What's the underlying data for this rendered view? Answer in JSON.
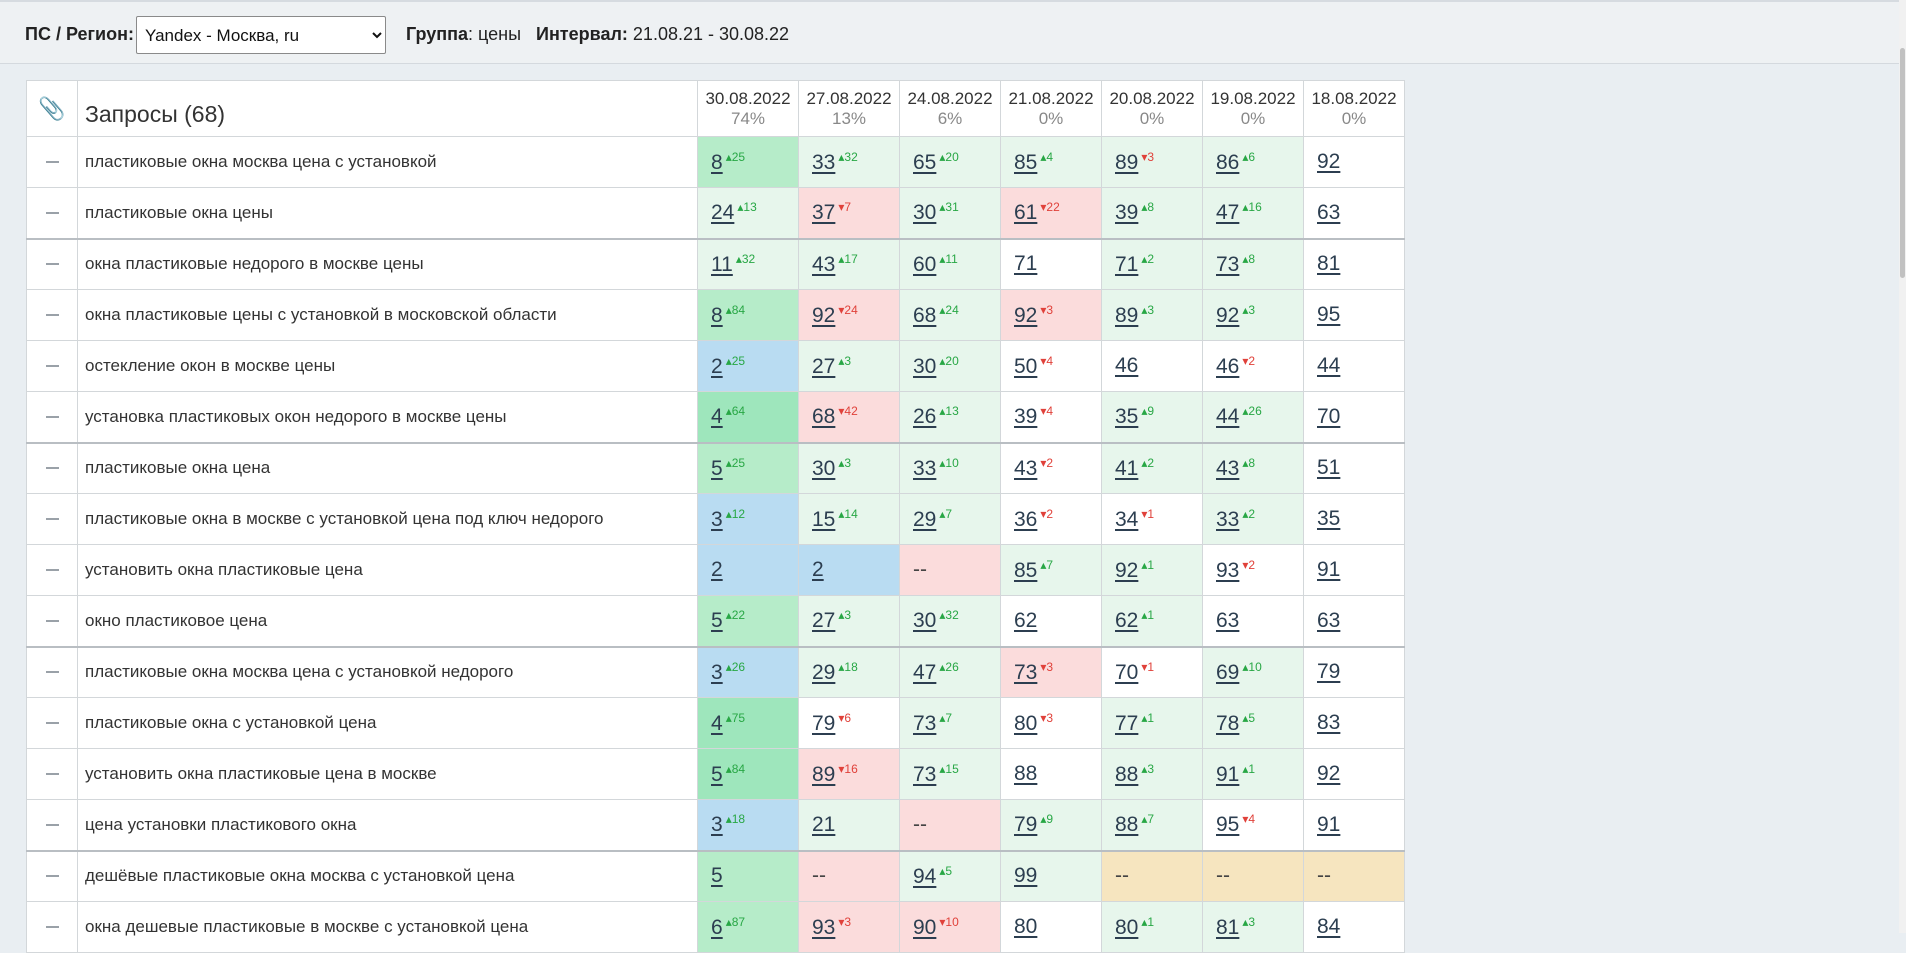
{
  "toolbar": {
    "ps_label": "ПС / Регион:",
    "region_value": "Yandex - Москва, ru",
    "group_label": "Группа",
    "group_value": ": цены",
    "interval_label": "Интервал:",
    "interval_value": "21.08.21 - 30.08.22"
  },
  "table": {
    "header_icon": "paperclip-icon",
    "queries_title": "Запросы (68)",
    "dates": [
      {
        "date": "30.08.2022",
        "pct": "74%"
      },
      {
        "date": "27.08.2022",
        "pct": "13%"
      },
      {
        "date": "24.08.2022",
        "pct": "6%"
      },
      {
        "date": "21.08.2022",
        "pct": "0%"
      },
      {
        "date": "20.08.2022",
        "pct": "0%"
      },
      {
        "date": "19.08.2022",
        "pct": "0%"
      },
      {
        "date": "18.08.2022",
        "pct": "0%"
      }
    ],
    "rows": [
      {
        "q": "пластиковые окна москва цена с установкой",
        "sep": false,
        "cells": [
          {
            "v": "8",
            "d": "25",
            "dir": "up",
            "bg": "mg"
          },
          {
            "v": "33",
            "d": "32",
            "dir": "up",
            "bg": "lg"
          },
          {
            "v": "65",
            "d": "20",
            "dir": "up",
            "bg": "lg"
          },
          {
            "v": "85",
            "d": "4",
            "dir": "up",
            "bg": "lg"
          },
          {
            "v": "89",
            "d": "3",
            "dir": "down",
            "bg": "lg"
          },
          {
            "v": "86",
            "d": "6",
            "dir": "up",
            "bg": "lg"
          },
          {
            "v": "92",
            "d": "",
            "dir": "",
            "bg": "wh"
          }
        ]
      },
      {
        "q": "пластиковые окна цены",
        "sep": false,
        "cells": [
          {
            "v": "24",
            "d": "13",
            "dir": "up",
            "bg": "lg"
          },
          {
            "v": "37",
            "d": "7",
            "dir": "down",
            "bg": "rd"
          },
          {
            "v": "30",
            "d": "31",
            "dir": "up",
            "bg": "lg"
          },
          {
            "v": "61",
            "d": "22",
            "dir": "down",
            "bg": "rd"
          },
          {
            "v": "39",
            "d": "8",
            "dir": "up",
            "bg": "lg"
          },
          {
            "v": "47",
            "d": "16",
            "dir": "up",
            "bg": "lg"
          },
          {
            "v": "63",
            "d": "",
            "dir": "",
            "bg": "wh"
          }
        ]
      },
      {
        "q": "окна пластиковые недорого в москве цены",
        "sep": true,
        "cells": [
          {
            "v": "11",
            "d": "32",
            "dir": "up",
            "bg": "lg"
          },
          {
            "v": "43",
            "d": "17",
            "dir": "up",
            "bg": "lg"
          },
          {
            "v": "60",
            "d": "11",
            "dir": "up",
            "bg": "lg"
          },
          {
            "v": "71",
            "d": "",
            "dir": "",
            "bg": "wh"
          },
          {
            "v": "71",
            "d": "2",
            "dir": "up",
            "bg": "lg"
          },
          {
            "v": "73",
            "d": "8",
            "dir": "up",
            "bg": "lg"
          },
          {
            "v": "81",
            "d": "",
            "dir": "",
            "bg": "wh"
          }
        ]
      },
      {
        "q": "окна пластиковые цены с установкой в московской области",
        "sep": false,
        "cells": [
          {
            "v": "8",
            "d": "84",
            "dir": "up",
            "bg": "mg"
          },
          {
            "v": "92",
            "d": "24",
            "dir": "down",
            "bg": "rd"
          },
          {
            "v": "68",
            "d": "24",
            "dir": "up",
            "bg": "lg"
          },
          {
            "v": "92",
            "d": "3",
            "dir": "down",
            "bg": "rd"
          },
          {
            "v": "89",
            "d": "3",
            "dir": "up",
            "bg": "lg"
          },
          {
            "v": "92",
            "d": "3",
            "dir": "up",
            "bg": "lg"
          },
          {
            "v": "95",
            "d": "",
            "dir": "",
            "bg": "wh"
          }
        ]
      },
      {
        "q": "остекление окон в москве цены",
        "sep": false,
        "cells": [
          {
            "v": "2",
            "d": "25",
            "dir": "up",
            "bg": "bl"
          },
          {
            "v": "27",
            "d": "3",
            "dir": "up",
            "bg": "lg"
          },
          {
            "v": "30",
            "d": "20",
            "dir": "up",
            "bg": "lg"
          },
          {
            "v": "50",
            "d": "4",
            "dir": "down",
            "bg": "wh"
          },
          {
            "v": "46",
            "d": "",
            "dir": "",
            "bg": "wh",
            "plain": true
          },
          {
            "v": "46",
            "d": "2",
            "dir": "down",
            "bg": "wh"
          },
          {
            "v": "44",
            "d": "",
            "dir": "",
            "bg": "wh"
          }
        ]
      },
      {
        "q": "установка пластиковых окон недорого в москве цены",
        "sep": false,
        "cells": [
          {
            "v": "4",
            "d": "64",
            "dir": "up",
            "bg": "dg"
          },
          {
            "v": "68",
            "d": "42",
            "dir": "down",
            "bg": "rd"
          },
          {
            "v": "26",
            "d": "13",
            "dir": "up",
            "bg": "lg"
          },
          {
            "v": "39",
            "d": "4",
            "dir": "down",
            "bg": "wh"
          },
          {
            "v": "35",
            "d": "9",
            "dir": "up",
            "bg": "lg"
          },
          {
            "v": "44",
            "d": "26",
            "dir": "up",
            "bg": "lg"
          },
          {
            "v": "70",
            "d": "",
            "dir": "",
            "bg": "wh"
          }
        ]
      },
      {
        "q": "пластиковые окна цена",
        "sep": true,
        "cells": [
          {
            "v": "5",
            "d": "25",
            "dir": "up",
            "bg": "mg"
          },
          {
            "v": "30",
            "d": "3",
            "dir": "up",
            "bg": "lg"
          },
          {
            "v": "33",
            "d": "10",
            "dir": "up",
            "bg": "lg"
          },
          {
            "v": "43",
            "d": "2",
            "dir": "down",
            "bg": "wh"
          },
          {
            "v": "41",
            "d": "2",
            "dir": "up",
            "bg": "lg"
          },
          {
            "v": "43",
            "d": "8",
            "dir": "up",
            "bg": "lg"
          },
          {
            "v": "51",
            "d": "",
            "dir": "",
            "bg": "wh"
          }
        ]
      },
      {
        "q": "пластиковые окна в москве с установкой цена под ключ недорого",
        "sep": false,
        "cells": [
          {
            "v": "3",
            "d": "12",
            "dir": "up",
            "bg": "bl"
          },
          {
            "v": "15",
            "d": "14",
            "dir": "up",
            "bg": "lg"
          },
          {
            "v": "29",
            "d": "7",
            "dir": "up",
            "bg": "lg"
          },
          {
            "v": "36",
            "d": "2",
            "dir": "down",
            "bg": "wh"
          },
          {
            "v": "34",
            "d": "1",
            "dir": "down",
            "bg": "wh"
          },
          {
            "v": "33",
            "d": "2",
            "dir": "up",
            "bg": "lg"
          },
          {
            "v": "35",
            "d": "",
            "dir": "",
            "bg": "wh"
          }
        ]
      },
      {
        "q": "установить окна пластиковые цена",
        "sep": false,
        "cells": [
          {
            "v": "2",
            "d": "",
            "dir": "",
            "bg": "bl"
          },
          {
            "v": "2",
            "d": "",
            "dir": "",
            "bg": "bl"
          },
          {
            "v": "--",
            "d": "",
            "dir": "",
            "bg": "rd",
            "na": true
          },
          {
            "v": "85",
            "d": "7",
            "dir": "up",
            "bg": "lg"
          },
          {
            "v": "92",
            "d": "1",
            "dir": "up",
            "bg": "lg"
          },
          {
            "v": "93",
            "d": "2",
            "dir": "down",
            "bg": "wh"
          },
          {
            "v": "91",
            "d": "",
            "dir": "",
            "bg": "wh"
          }
        ]
      },
      {
        "q": "окно пластиковое цена",
        "sep": false,
        "cells": [
          {
            "v": "5",
            "d": "22",
            "dir": "up",
            "bg": "mg"
          },
          {
            "v": "27",
            "d": "3",
            "dir": "up",
            "bg": "lg"
          },
          {
            "v": "30",
            "d": "32",
            "dir": "up",
            "bg": "lg"
          },
          {
            "v": "62",
            "d": "",
            "dir": "",
            "bg": "wh"
          },
          {
            "v": "62",
            "d": "1",
            "dir": "up",
            "bg": "lg"
          },
          {
            "v": "63",
            "d": "",
            "dir": "",
            "bg": "wh"
          },
          {
            "v": "63",
            "d": "",
            "dir": "",
            "bg": "wh"
          }
        ]
      },
      {
        "q": "пластиковые окна москва цена с установкой недорого",
        "sep": true,
        "cells": [
          {
            "v": "3",
            "d": "26",
            "dir": "up",
            "bg": "bl"
          },
          {
            "v": "29",
            "d": "18",
            "dir": "up",
            "bg": "lg"
          },
          {
            "v": "47",
            "d": "26",
            "dir": "up",
            "bg": "lg"
          },
          {
            "v": "73",
            "d": "3",
            "dir": "down",
            "bg": "rd"
          },
          {
            "v": "70",
            "d": "1",
            "dir": "down",
            "bg": "wh"
          },
          {
            "v": "69",
            "d": "10",
            "dir": "up",
            "bg": "lg"
          },
          {
            "v": "79",
            "d": "",
            "dir": "",
            "bg": "wh"
          }
        ]
      },
      {
        "q": "пластиковые окна с установкой цена",
        "sep": false,
        "cells": [
          {
            "v": "4",
            "d": "75",
            "dir": "up",
            "bg": "dg"
          },
          {
            "v": "79",
            "d": "6",
            "dir": "down",
            "bg": "wh"
          },
          {
            "v": "73",
            "d": "7",
            "dir": "up",
            "bg": "lg"
          },
          {
            "v": "80",
            "d": "3",
            "dir": "down",
            "bg": "wh"
          },
          {
            "v": "77",
            "d": "1",
            "dir": "up",
            "bg": "lg"
          },
          {
            "v": "78",
            "d": "5",
            "dir": "up",
            "bg": "lg"
          },
          {
            "v": "83",
            "d": "",
            "dir": "",
            "bg": "wh"
          }
        ]
      },
      {
        "q": "установить окна пластиковые цена в москве",
        "sep": false,
        "cells": [
          {
            "v": "5",
            "d": "84",
            "dir": "up",
            "bg": "dg"
          },
          {
            "v": "89",
            "d": "16",
            "dir": "down",
            "bg": "rd"
          },
          {
            "v": "73",
            "d": "15",
            "dir": "up",
            "bg": "lg"
          },
          {
            "v": "88",
            "d": "",
            "dir": "",
            "bg": "wh"
          },
          {
            "v": "88",
            "d": "3",
            "dir": "up",
            "bg": "lg"
          },
          {
            "v": "91",
            "d": "1",
            "dir": "up",
            "bg": "lg"
          },
          {
            "v": "92",
            "d": "",
            "dir": "",
            "bg": "wh"
          }
        ]
      },
      {
        "q": "цена установки пластикового окна",
        "sep": false,
        "cells": [
          {
            "v": "3",
            "d": "18",
            "dir": "up",
            "bg": "bl"
          },
          {
            "v": "21",
            "d": "",
            "dir": "",
            "bg": "lg"
          },
          {
            "v": "--",
            "d": "",
            "dir": "",
            "bg": "rd",
            "na": true
          },
          {
            "v": "79",
            "d": "9",
            "dir": "up",
            "bg": "lg"
          },
          {
            "v": "88",
            "d": "7",
            "dir": "up",
            "bg": "lg"
          },
          {
            "v": "95",
            "d": "4",
            "dir": "down",
            "bg": "wh"
          },
          {
            "v": "91",
            "d": "",
            "dir": "",
            "bg": "wh"
          }
        ]
      },
      {
        "q": "дешёвые пластиковые окна москва с установкой цена",
        "sep": true,
        "cells": [
          {
            "v": "5",
            "d": "",
            "dir": "",
            "bg": "mg"
          },
          {
            "v": "--",
            "d": "",
            "dir": "",
            "bg": "rd",
            "na": true
          },
          {
            "v": "94",
            "d": "5",
            "dir": "up",
            "bg": "lg"
          },
          {
            "v": "99",
            "d": "",
            "dir": "",
            "bg": "lg"
          },
          {
            "v": "--",
            "d": "",
            "dir": "",
            "bg": "ye",
            "na": true
          },
          {
            "v": "--",
            "d": "",
            "dir": "",
            "bg": "ye",
            "na": true
          },
          {
            "v": "--",
            "d": "",
            "dir": "",
            "bg": "ye",
            "na": true
          }
        ]
      },
      {
        "q": "окна дешевые пластиковые в москве с установкой цена",
        "sep": false,
        "cells": [
          {
            "v": "6",
            "d": "87",
            "dir": "up",
            "bg": "mg"
          },
          {
            "v": "93",
            "d": "3",
            "dir": "down",
            "bg": "rd"
          },
          {
            "v": "90",
            "d": "10",
            "dir": "down",
            "bg": "rd"
          },
          {
            "v": "80",
            "d": "",
            "dir": "",
            "bg": "wh",
            "plain": true
          },
          {
            "v": "80",
            "d": "1",
            "dir": "up",
            "bg": "lg"
          },
          {
            "v": "81",
            "d": "3",
            "dir": "up",
            "bg": "lg"
          },
          {
            "v": "84",
            "d": "",
            "dir": "",
            "bg": "wh",
            "plain": true
          }
        ]
      }
    ]
  }
}
